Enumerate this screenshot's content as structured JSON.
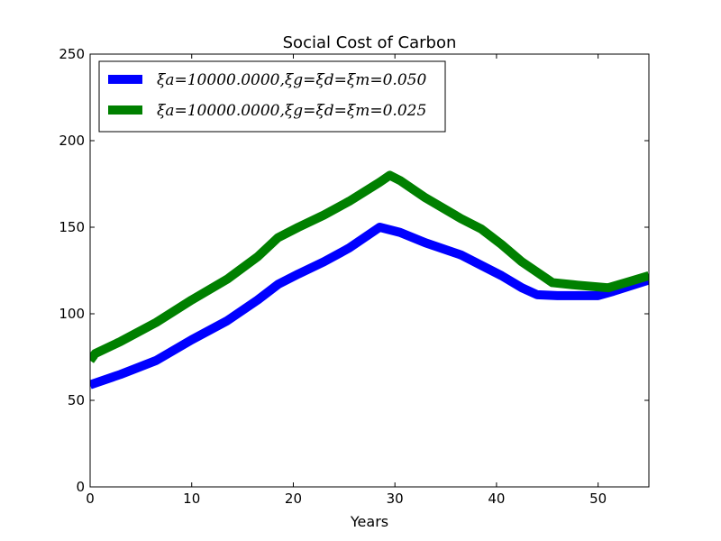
{
  "chart_data": {
    "type": "line",
    "title": "Social Cost of Carbon",
    "xlabel": "Years",
    "ylabel": "",
    "xlim": [
      0,
      55
    ],
    "ylim": [
      0,
      250
    ],
    "xticks": [
      0,
      10,
      20,
      30,
      40,
      50
    ],
    "yticks": [
      0,
      50,
      100,
      150,
      200,
      250
    ],
    "grid": false,
    "legend_position": "top-left",
    "series": [
      {
        "name": "ξa=10000.0000,ξg=ξd=ξm=0.050",
        "color": "#0000ff",
        "x": [
          0,
          3,
          6.5,
          10,
          13.5,
          16.5,
          18.5,
          20.5,
          23,
          25.5,
          28.5,
          30.5,
          33,
          36.5,
          38.5,
          40.5,
          42.5,
          44,
          46,
          48,
          50,
          51.5,
          55
        ],
        "y": [
          59,
          65,
          73,
          85,
          96,
          108,
          117,
          123,
          130,
          138,
          150,
          147,
          141,
          134,
          128,
          122,
          115,
          111,
          110.5,
          110.5,
          110.5,
          113,
          119.5
        ]
      },
      {
        "name": "ξa=10000.0000,ξg=ξd=ξm=0.025",
        "color": "#008000",
        "x": [
          0,
          0.5,
          3,
          6.5,
          10,
          13.5,
          16.5,
          18.5,
          20.5,
          23,
          25.5,
          28.5,
          29.5,
          30.5,
          33,
          36.5,
          38.5,
          40.5,
          42.5,
          44,
          45.5,
          48,
          51,
          53,
          55
        ],
        "y": [
          73,
          77,
          84,
          95,
          108,
          120,
          133,
          144,
          150,
          157,
          165,
          176,
          180,
          177,
          167,
          155,
          149,
          140,
          130,
          124,
          118,
          116.5,
          115,
          118.5,
          122
        ]
      }
    ]
  }
}
